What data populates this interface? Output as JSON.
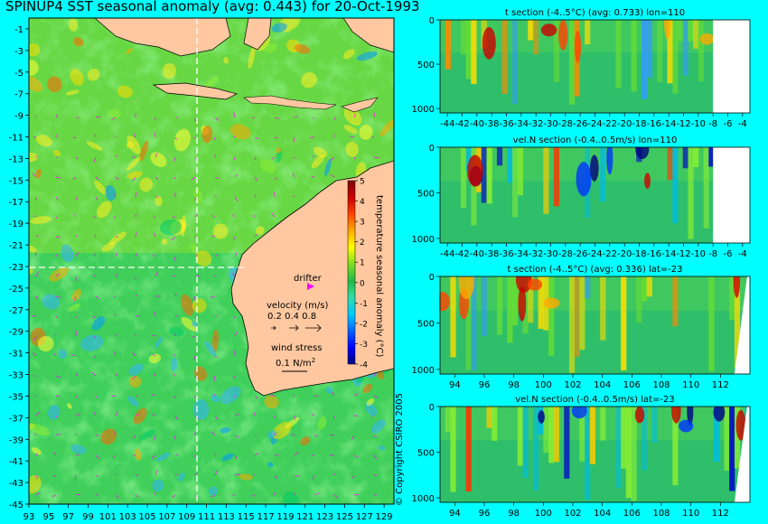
{
  "title": "SPINUP4 SST seasonal anomaly (avg: 0.443) for 20-Oct-1993",
  "copyright": "© Copyright CSIRO 2005",
  "colors": {
    "background": "#00ffff",
    "land": "#ffc8a0",
    "colormap": [
      "#00007f",
      "#0000ff",
      "#0066ff",
      "#00ccff",
      "#33ddaa",
      "#22bb44",
      "#7fdd22",
      "#ffff00",
      "#ffaa00",
      "#ff4400",
      "#cc0000",
      "#7f0000"
    ],
    "vector": "#ff00ff"
  },
  "map": {
    "legend": {
      "drifter": "drifter",
      "velocity_title": "velocity (m/s)",
      "velocity_values": "0.2 0.4 0.8",
      "wind_title": "wind stress",
      "wind_value": "0.1 N/m",
      "wind_exponent": "2"
    },
    "colorbar": {
      "label": "temperature seasonal anomaly (°C)",
      "range": [
        -4,
        5
      ]
    }
  },
  "chart_data": [
    {
      "type": "heatmap",
      "subtype": "map",
      "title": "SPINUP4 SST seasonal anomaly (avg: 0.443) for 20-Oct-1993",
      "x_ticks": [
        "93",
        "95",
        "97",
        "99",
        "101",
        "103",
        "105",
        "107",
        "109",
        "111",
        "113",
        "115",
        "117",
        "119",
        "121",
        "123",
        "125",
        "127",
        "129"
      ],
      "y_ticks": [
        "-1",
        "-3",
        "-5",
        "-7",
        "-9",
        "-11",
        "-13",
        "-15",
        "-17",
        "-19",
        "-21",
        "-23",
        "-25",
        "-27",
        "-29",
        "-31",
        "-33",
        "-35",
        "-37",
        "-39",
        "-41",
        "-43",
        "-45"
      ],
      "xlim": [
        93,
        130
      ],
      "ylim": [
        -45,
        0
      ],
      "section_lon": 110,
      "section_lat": -23,
      "colorbar_ticks": [
        "5",
        "4",
        "3",
        "2",
        "1",
        "0",
        "-1",
        "-2",
        "-3",
        "-4"
      ],
      "colorbar_label": "temperature seasonal anomaly (°C)"
    },
    {
      "type": "heatmap",
      "title": "t section (-4..5°C) (avg: 0.733) lon=110",
      "x_ticks": [
        "-44",
        "-42",
        "-40",
        "-38",
        "-36",
        "-34",
        "-32",
        "-30",
        "-28",
        "-26",
        "-24",
        "-22",
        "-20",
        "-18",
        "-16",
        "-14",
        "-12",
        "-10",
        "-8",
        "-6",
        "-4"
      ],
      "y_ticks": [
        "0",
        "500",
        "1000"
      ],
      "xlim": [
        -45,
        -3
      ],
      "ylim": [
        1050,
        0
      ]
    },
    {
      "type": "heatmap",
      "title": "vel.N section (-0.4..0.5m/s) lon=110",
      "x_ticks": [
        "-44",
        "-42",
        "-40",
        "-38",
        "-36",
        "-34",
        "-32",
        "-30",
        "-28",
        "-26",
        "-24",
        "-22",
        "-20",
        "-18",
        "-16",
        "-14",
        "-12",
        "-10",
        "-8",
        "-6",
        "-4"
      ],
      "y_ticks": [
        "0",
        "500",
        "1000"
      ],
      "xlim": [
        -45,
        -3
      ],
      "ylim": [
        1050,
        0
      ]
    },
    {
      "type": "heatmap",
      "title": "t section (-4..5°C) (avg: 0.336) lat=-23",
      "x_ticks": [
        "94",
        "96",
        "98",
        "100",
        "102",
        "104",
        "106",
        "108",
        "110",
        "112"
      ],
      "y_ticks": [
        "0",
        "500",
        "1000"
      ],
      "xlim": [
        93,
        114
      ],
      "ylim": [
        1050,
        0
      ]
    },
    {
      "type": "heatmap",
      "title": "vel.N section (-0.4..0.5m/s) lat=-23",
      "x_ticks": [
        "94",
        "96",
        "98",
        "100",
        "102",
        "104",
        "106",
        "108",
        "110",
        "112"
      ],
      "y_ticks": [
        "0",
        "500",
        "1000"
      ],
      "xlim": [
        93,
        114
      ],
      "ylim": [
        1050,
        0
      ]
    }
  ]
}
